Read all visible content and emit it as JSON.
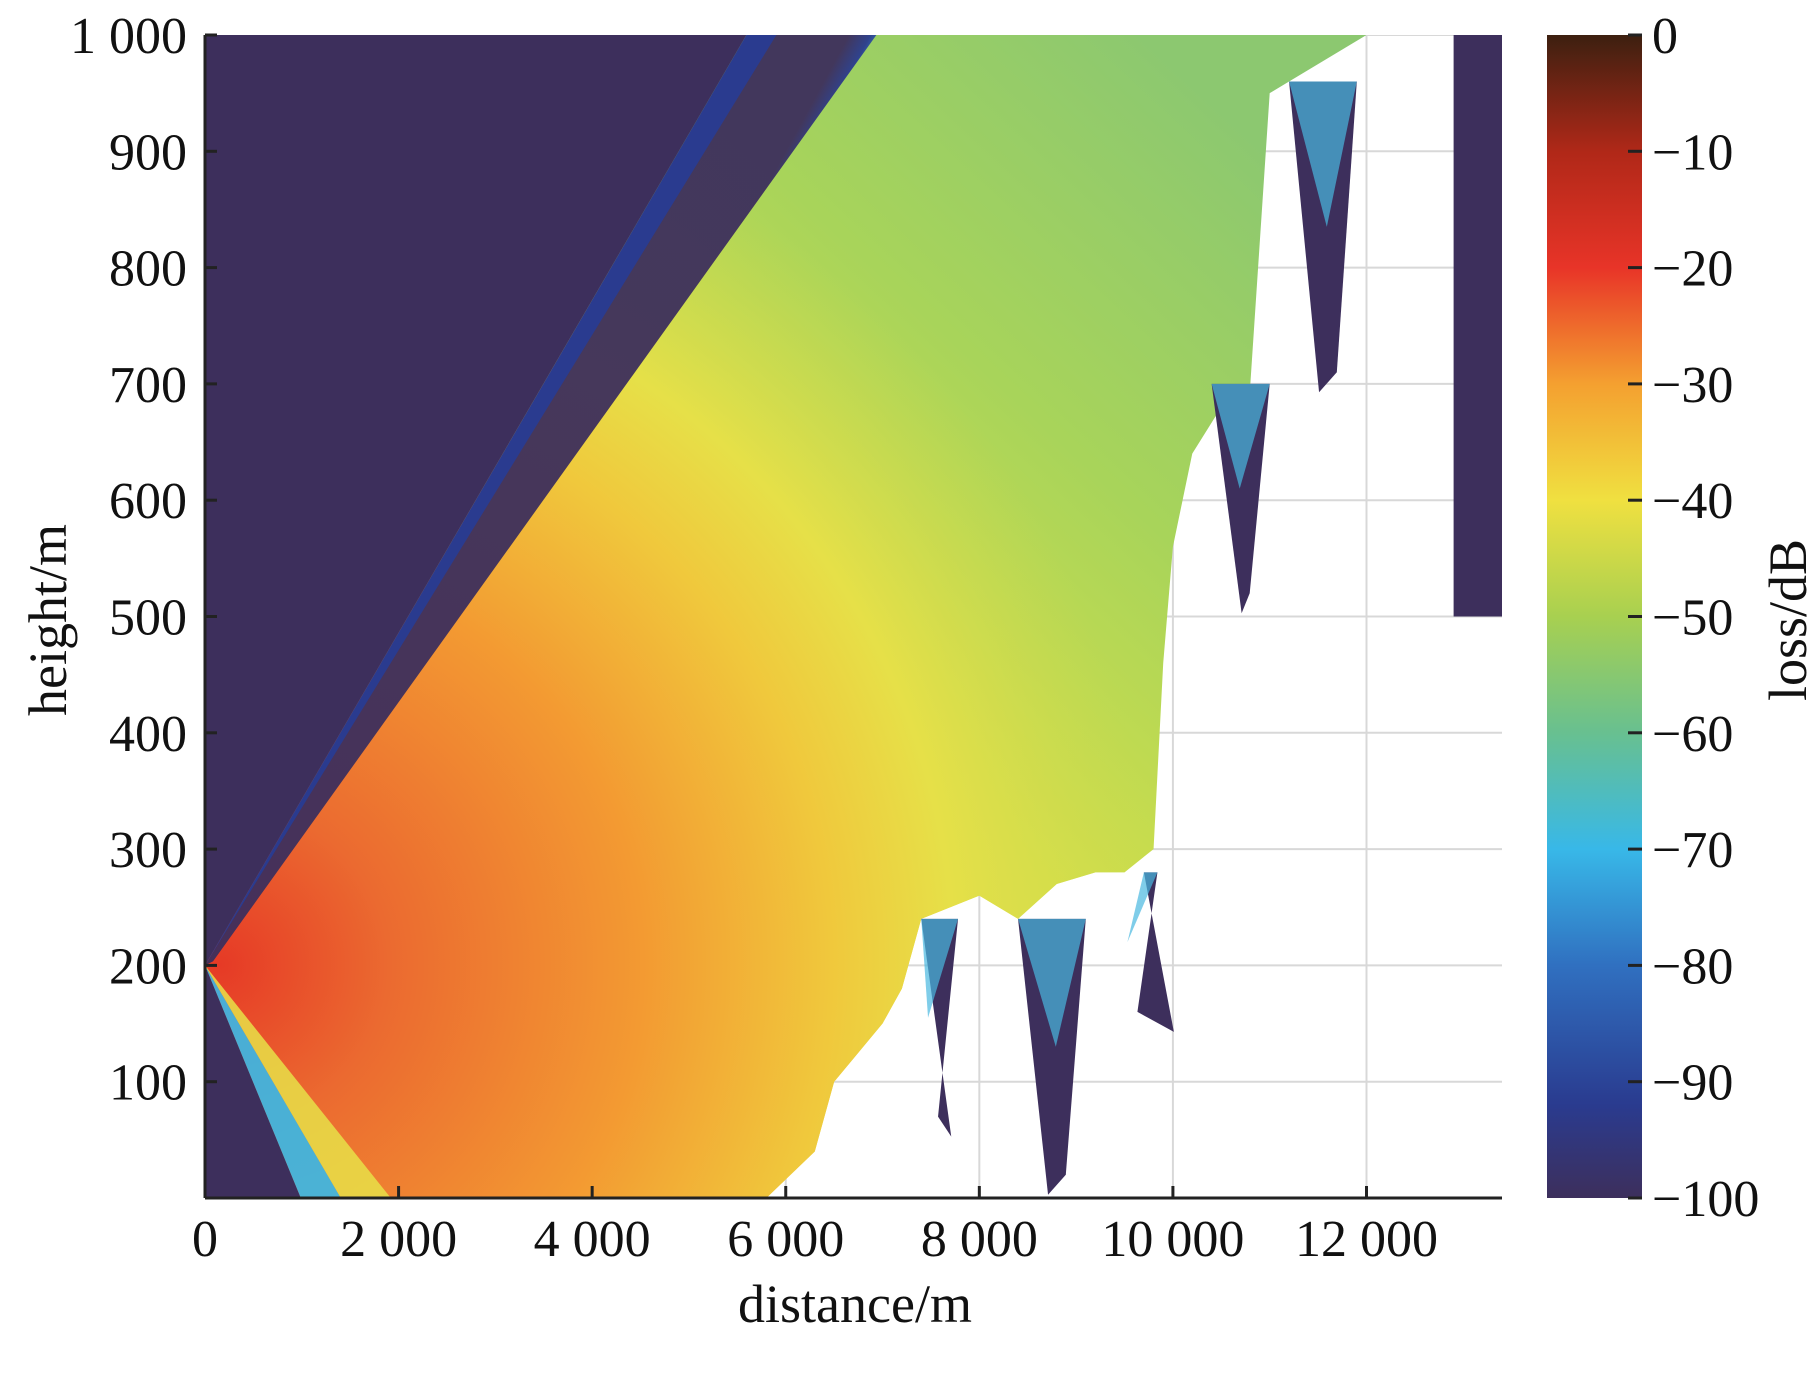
{
  "chart_data": {
    "type": "heatmap",
    "title": "",
    "xlabel": "distance/m",
    "ylabel": "height/m",
    "colorbar_label": "loss/dB",
    "xlim": [
      0,
      13400
    ],
    "ylim": [
      0,
      1000
    ],
    "x_ticks": [
      0,
      2000,
      4000,
      6000,
      8000,
      10000,
      12000
    ],
    "x_tick_labels": [
      "0",
      "2 000",
      "4 000",
      "6 000",
      "8 000",
      "10 000",
      "12 000"
    ],
    "y_ticks": [
      100,
      200,
      300,
      400,
      500,
      600,
      700,
      800,
      900,
      1000
    ],
    "y_tick_labels": [
      "100",
      "200",
      "300",
      "400",
      "500",
      "600",
      "700",
      "800",
      "900",
      "1 000"
    ],
    "colorbar_ticks": [
      0,
      -10,
      -20,
      -30,
      -40,
      -50,
      -60,
      -70,
      -80,
      -90,
      -100
    ],
    "colorbar_tick_labels": [
      "0",
      "−10",
      "−20",
      "−30",
      "−40",
      "−50",
      "−60",
      "−70",
      "−80",
      "−90",
      "−100"
    ],
    "color_range": [
      -100,
      0
    ],
    "colormap": [
      "#3c2010",
      "#b02818",
      "#e83428",
      "#f07030",
      "#f4a030",
      "#f0e040",
      "#a8d050",
      "#68c090",
      "#38b8e8",
      "#3070c0",
      "#2a3b8f",
      "#3d2f5c"
    ],
    "source": {
      "x": 0,
      "y": 200,
      "peak_loss_dB": -18
    },
    "grid": true,
    "terrain_profile": {
      "description": "terrain height (m) versus distance (m); region below is blank",
      "x": [
        5800,
        6300,
        6500,
        6700,
        7000,
        7200,
        7400,
        8000,
        8200,
        8400,
        8800,
        9200,
        9500,
        9800,
        9900,
        10000,
        10200,
        10500,
        10800,
        11000,
        11200,
        11400,
        11600,
        11800,
        12000,
        13400
      ],
      "y": [
        0,
        40,
        100,
        120,
        150,
        180,
        240,
        260,
        250,
        240,
        270,
        280,
        280,
        300,
        460,
        560,
        640,
        680,
        700,
        950,
        960,
        970,
        980,
        990,
        1000,
        1000
      ]
    }
  }
}
